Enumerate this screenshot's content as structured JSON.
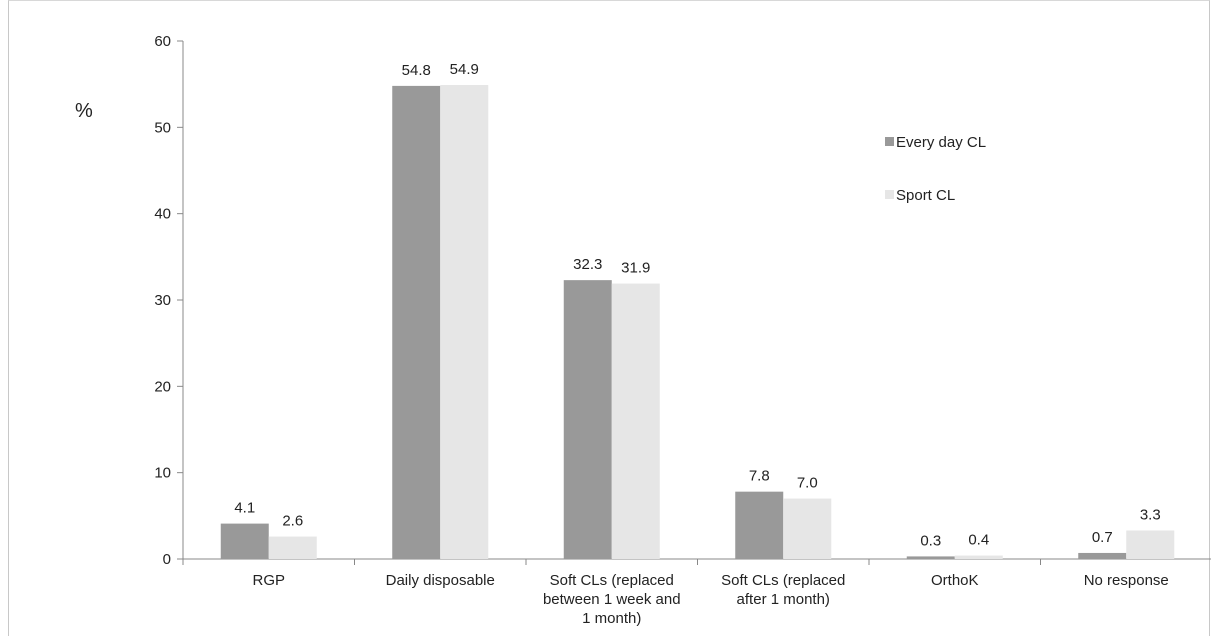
{
  "chart_data": {
    "type": "bar",
    "ylabel": "%",
    "ylim": [
      0,
      60
    ],
    "yticks": [
      0,
      10,
      20,
      30,
      40,
      50,
      60
    ],
    "categories": [
      [
        "RGP"
      ],
      [
        "Daily disposable"
      ],
      [
        "Soft CLs (replaced",
        "between 1 week and",
        "1 month)"
      ],
      [
        "Soft CLs (replaced",
        "after 1 month)"
      ],
      [
        "OrthoK"
      ],
      [
        "No response"
      ]
    ],
    "series": [
      {
        "name": "Every day CL",
        "color": "#999999",
        "values": [
          4.1,
          54.8,
          32.3,
          7.8,
          0.3,
          0.7
        ],
        "labels": [
          "4.1",
          "54.8",
          "32.3",
          "7.8",
          "0.3",
          "0.7"
        ]
      },
      {
        "name": "Sport CL",
        "color": "#e6e6e6",
        "values": [
          2.6,
          54.9,
          31.9,
          7.0,
          0.4,
          3.3
        ],
        "labels": [
          "2.6",
          "54.9",
          "31.9",
          "7.0",
          "0.4",
          "3.3"
        ]
      }
    ],
    "legend_position": "right"
  }
}
